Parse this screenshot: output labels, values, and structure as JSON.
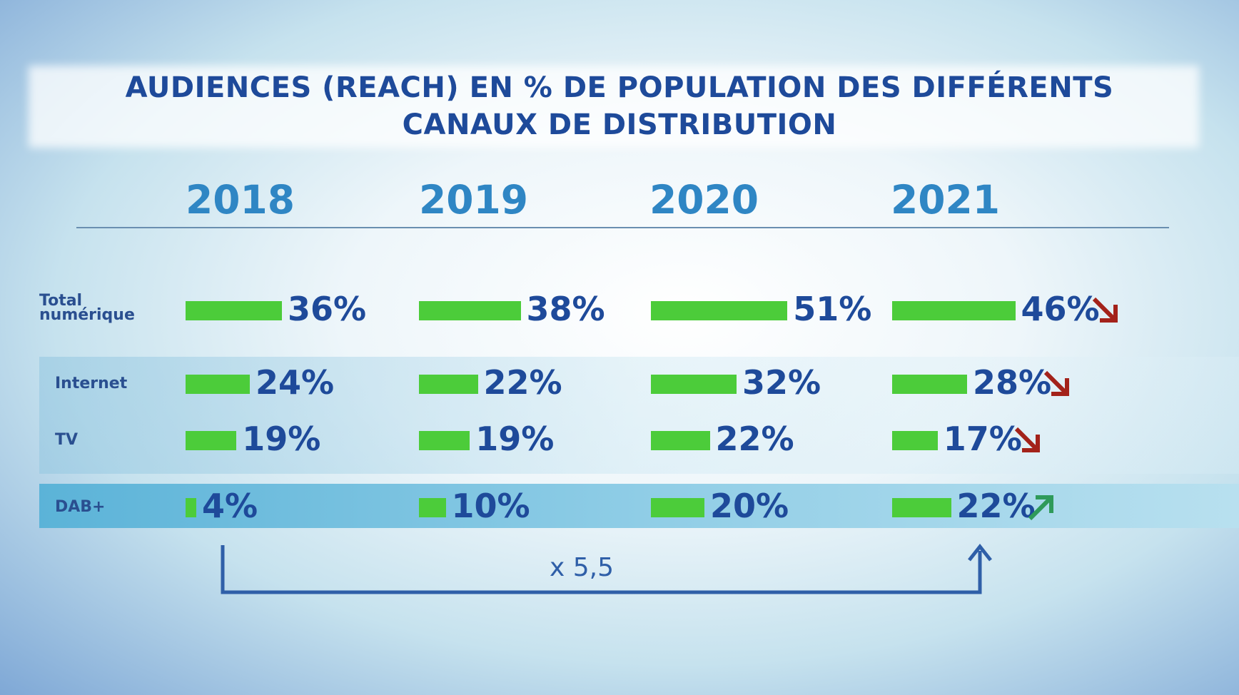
{
  "chart_data": {
    "type": "bar",
    "title": [
      "AUDIENCES (REACH) EN % DE POPULATION DES DIFFÉRENTS",
      "CANAUX DE DISTRIBUTION"
    ],
    "categories": [
      "2018",
      "2019",
      "2020",
      "2021"
    ],
    "series": [
      {
        "name": "Total numérique",
        "values": [
          36,
          38,
          51,
          46
        ],
        "labels": [
          "36%",
          "38%",
          "51%",
          "46%"
        ],
        "trend_2021": "down"
      },
      {
        "name": "Internet",
        "values": [
          24,
          22,
          32,
          28
        ],
        "labels": [
          "24%",
          "22%",
          "32%",
          "28%"
        ],
        "trend_2021": "down"
      },
      {
        "name": "TV",
        "values": [
          19,
          19,
          22,
          17
        ],
        "labels": [
          "19%",
          "19%",
          "22%",
          "17%"
        ],
        "trend_2021": "down"
      },
      {
        "name": "DAB+",
        "values": [
          4,
          10,
          20,
          22
        ],
        "labels": [
          "4%",
          "10%",
          "20%",
          "22%"
        ],
        "trend_2021": "up"
      }
    ],
    "annotation": "x 5,5",
    "colors": {
      "bar": "#4ccc3a",
      "text": "#1e4a9a",
      "year": "#2f86c4",
      "trend_down": "#a3221a",
      "trend_up": "#2f9a5a"
    }
  }
}
